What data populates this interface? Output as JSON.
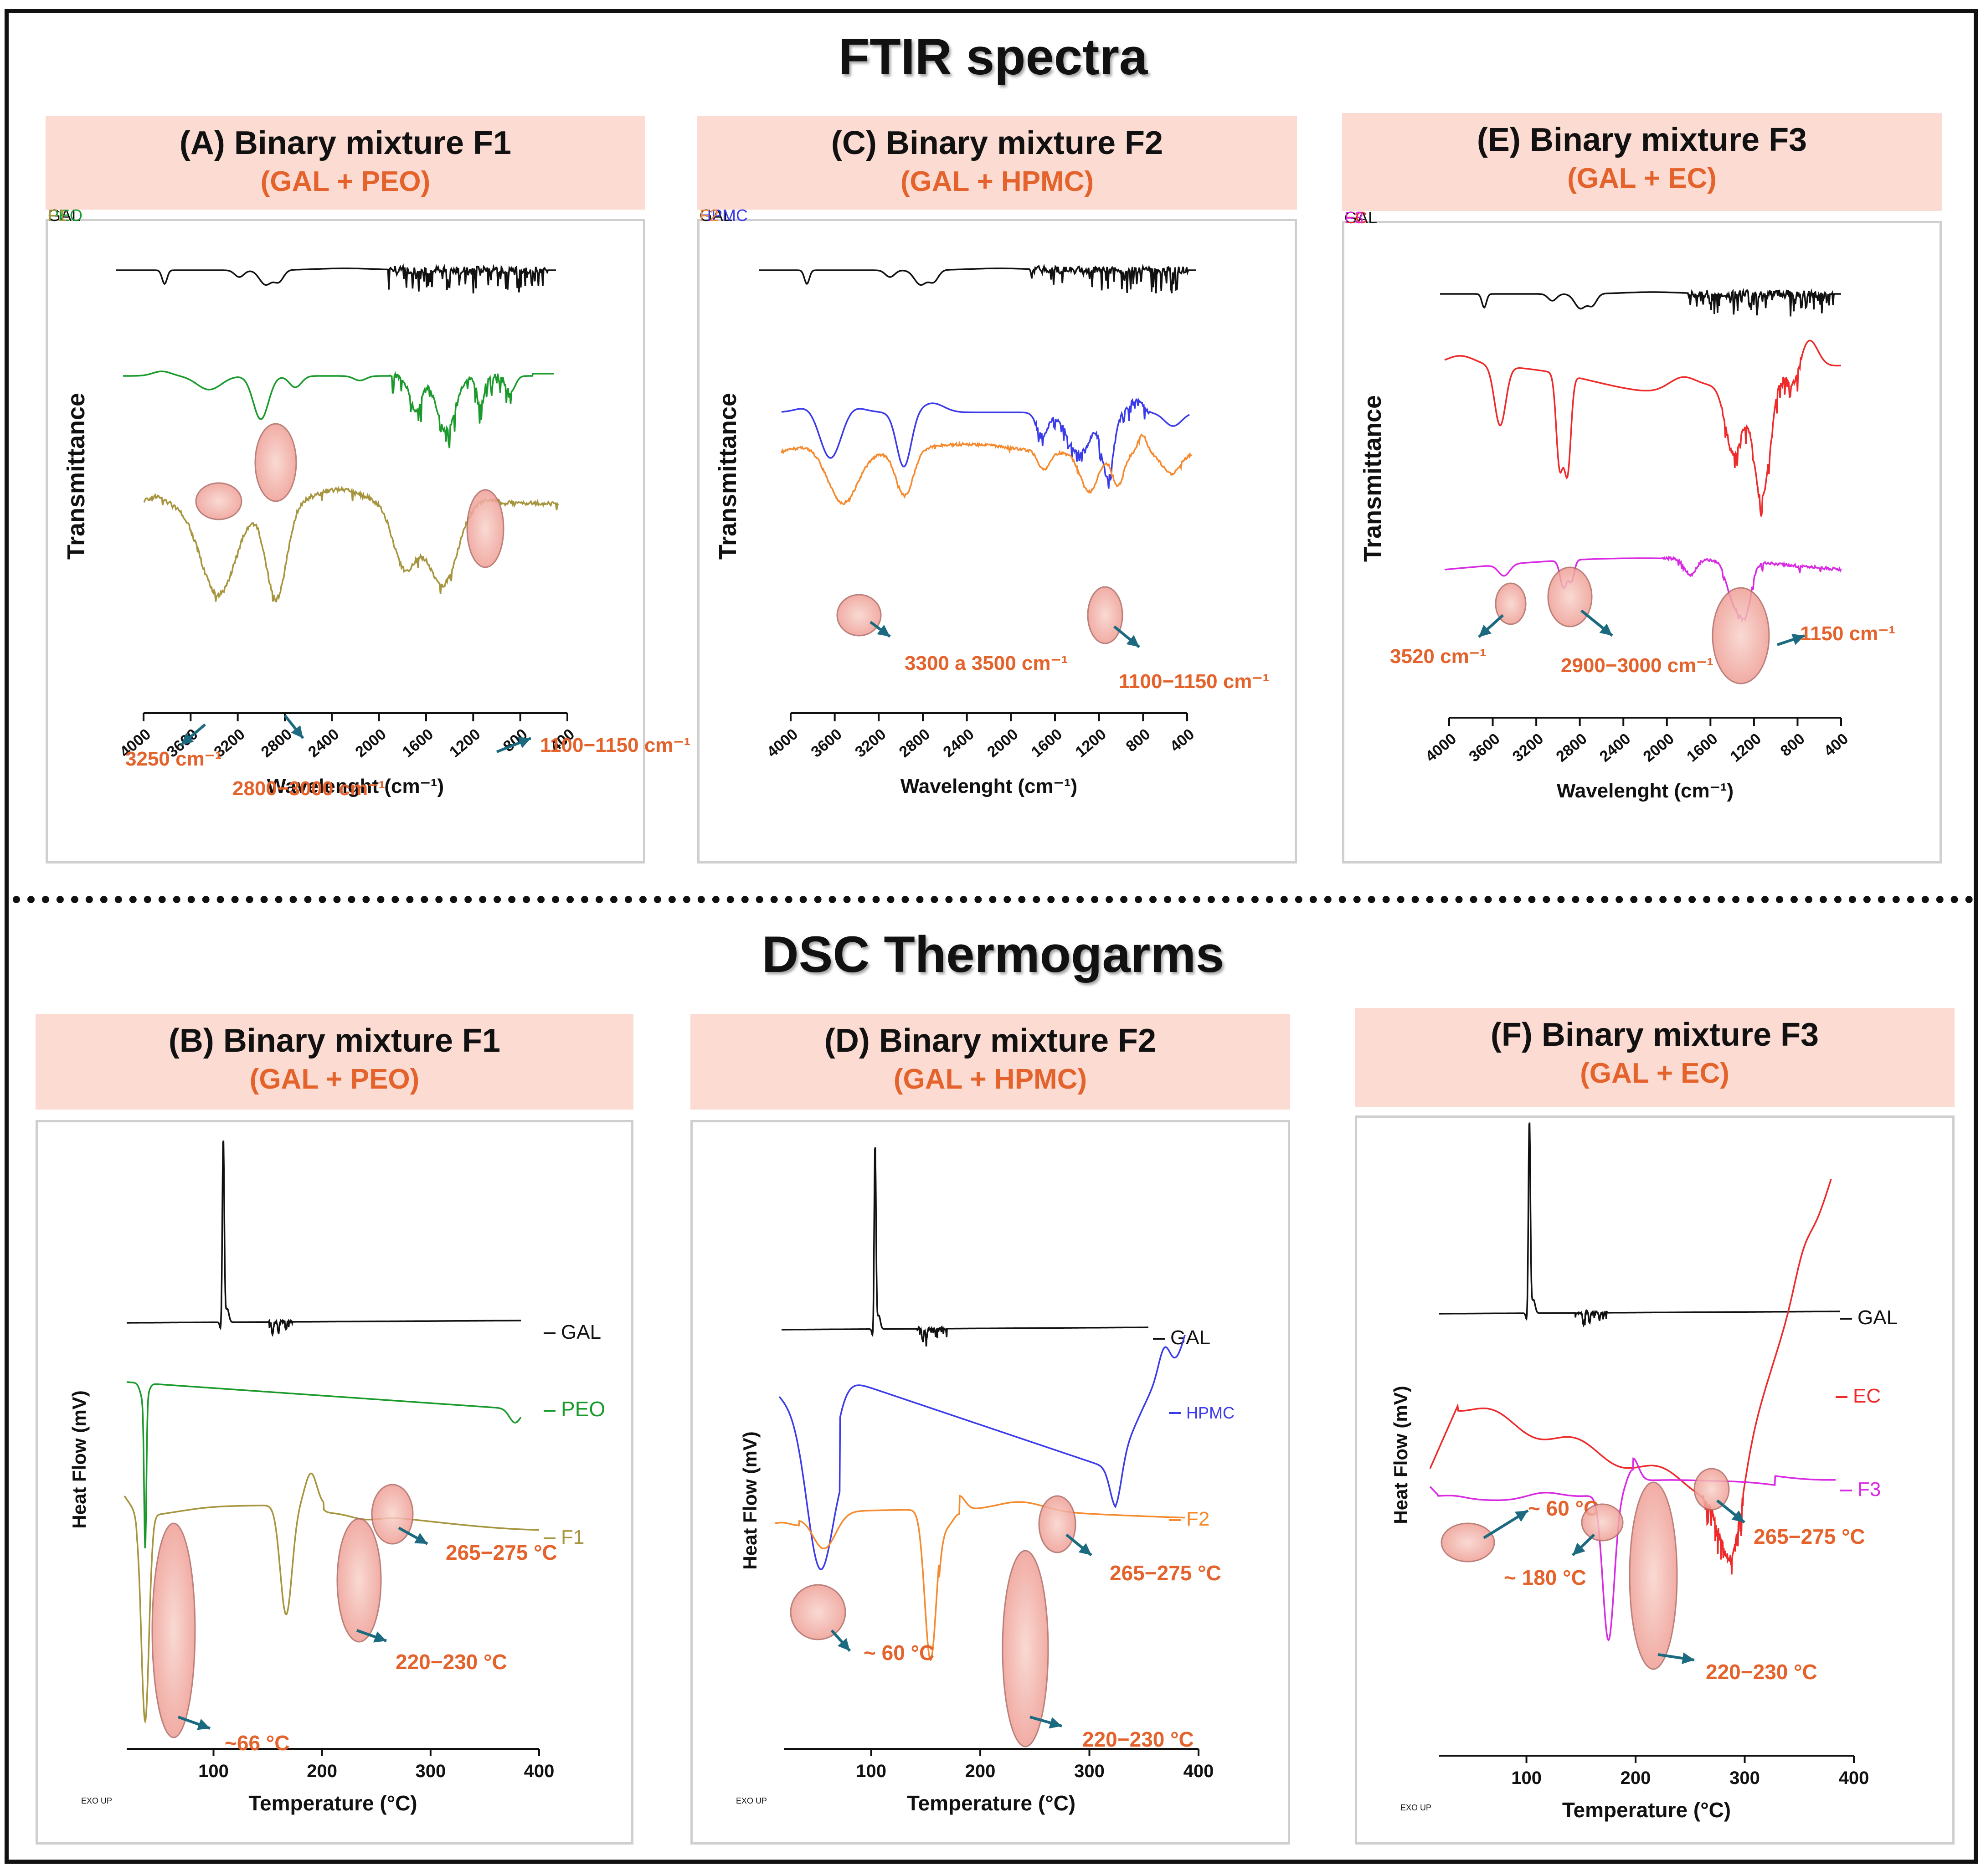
{
  "ftir_title": "FTIR spectra",
  "dsc_title": "DSC Thermogarms",
  "colors": {
    "GAL": "#111111",
    "PEO": "#1a9a2a",
    "F1": "#a6953e",
    "HPMC": "#3b3bea",
    "F2": "#f58a2e",
    "EC": "#ee2a2a",
    "F3": "#d92ae3",
    "annot": "#e4622b",
    "arrow": "#1b6a80",
    "highlight": "#f4b8b0"
  },
  "headers": [
    {
      "id": "A",
      "title": "(A) Binary mixture F1",
      "subtitle": "(GAL + PEO)"
    },
    {
      "id": "C",
      "title": "(C) Binary mixture F2",
      "subtitle": "(GAL + HPMC)"
    },
    {
      "id": "E",
      "title": "(E) Binary mixture F3",
      "subtitle": "(GAL + EC)"
    },
    {
      "id": "B",
      "title": "(B) Binary mixture F1",
      "subtitle": "(GAL + PEO)"
    },
    {
      "id": "D",
      "title": "(D) Binary mixture F2",
      "subtitle": "(GAL + HPMC)"
    },
    {
      "id": "F",
      "title": "(F) Binary mixture F3",
      "subtitle": "(GAL + EC)"
    }
  ],
  "chart_data": [
    {
      "panel": "A",
      "type": "line",
      "title": "(A) Binary mixture F1",
      "xlabel": "Wavelenght (cm⁻¹)",
      "ylabel": "Transmittance",
      "xlim": [
        4000,
        400
      ],
      "ticks": [
        "4000",
        "3600",
        "3200",
        "2800",
        "2400",
        "2000",
        "1600",
        "1200",
        "800",
        "400"
      ],
      "series": [
        {
          "name": "GAL"
        },
        {
          "name": "PEO"
        },
        {
          "name": "F1"
        }
      ],
      "annotations": [
        {
          "text": "3250 cm⁻¹",
          "at": 3250
        },
        {
          "text": "2800−3000 cm⁻¹",
          "at": 2900
        },
        {
          "text": "1100−1150 cm⁻¹",
          "at": 1125
        }
      ]
    },
    {
      "panel": "C",
      "type": "line",
      "title": "(C) Binary mixture F2",
      "xlabel": "Wavelenght (cm⁻¹)",
      "ylabel": "Transmittance",
      "xlim": [
        4000,
        400
      ],
      "ticks": [
        "4000",
        "3600",
        "3200",
        "2800",
        "2400",
        "2000",
        "1600",
        "1200",
        "800",
        "400"
      ],
      "series": [
        {
          "name": "GAL"
        },
        {
          "name": "HPMC"
        },
        {
          "name": "F2"
        }
      ],
      "annotations": [
        {
          "text": "3300 a 3500 cm⁻¹",
          "at": 3400
        },
        {
          "text": "1100−1150 cm⁻¹",
          "at": 1125
        }
      ]
    },
    {
      "panel": "E",
      "type": "line",
      "title": "(E) Binary mixture F3",
      "xlabel": "Wavelenght (cm⁻¹)",
      "ylabel": "Transmittance",
      "xlim": [
        4000,
        400
      ],
      "ticks": [
        "4000",
        "3600",
        "3200",
        "2800",
        "2400",
        "2000",
        "1600",
        "1200",
        "800",
        "400"
      ],
      "series": [
        {
          "name": "GAL"
        },
        {
          "name": "EC"
        },
        {
          "name": "F3"
        }
      ],
      "annotations": [
        {
          "text": "3520 cm⁻¹",
          "at": 3520
        },
        {
          "text": "2900−3000 cm⁻¹",
          "at": 2950
        },
        {
          "text": "1150 cm⁻¹",
          "at": 1150
        }
      ]
    },
    {
      "panel": "B",
      "type": "line",
      "title": "(B) Binary mixture F1",
      "xlabel": "Temperature (°C)",
      "ylabel": "Heat Flow (mV)",
      "xlim": [
        20,
        400
      ],
      "footnote": "EXO UP",
      "ticks": [
        "100",
        "200",
        "300",
        "400"
      ],
      "series": [
        {
          "name": "GAL"
        },
        {
          "name": "PEO"
        },
        {
          "name": "F1"
        }
      ],
      "annotations": [
        {
          "text": "~66 °C",
          "at": 66
        },
        {
          "text": "220−230 °C",
          "at": 225
        },
        {
          "text": "265−275 °C",
          "at": 270
        }
      ]
    },
    {
      "panel": "D",
      "type": "line",
      "title": "(D) Binary mixture F2",
      "xlabel": "Temperature (°C)",
      "ylabel": "Heat Flow (mV)",
      "xlim": [
        20,
        400
      ],
      "footnote": "EXO UP",
      "ticks": [
        "100",
        "200",
        "300",
        "400"
      ],
      "series": [
        {
          "name": "GAL"
        },
        {
          "name": "HPMC"
        },
        {
          "name": "F2"
        }
      ],
      "annotations": [
        {
          "text": "~ 60 °C",
          "at": 60
        },
        {
          "text": "220−230 °C",
          "at": 225
        },
        {
          "text": "265−275 °C",
          "at": 270
        }
      ]
    },
    {
      "panel": "F",
      "type": "line",
      "title": "(F) Binary mixture F3",
      "xlabel": "Temperature (°C)",
      "ylabel": "Heat Flow (mV)",
      "xlim": [
        20,
        400
      ],
      "footnote": "EXO UP",
      "ticks": [
        "100",
        "200",
        "300",
        "400"
      ],
      "series": [
        {
          "name": "GAL"
        },
        {
          "name": "EC"
        },
        {
          "name": "F3"
        }
      ],
      "annotations": [
        {
          "text": "~ 60 °C",
          "at": 60
        },
        {
          "text": "~ 180 °C",
          "at": 180
        },
        {
          "text": "220−230 °C",
          "at": 225
        },
        {
          "text": "265−275 °C",
          "at": 270
        }
      ]
    }
  ]
}
